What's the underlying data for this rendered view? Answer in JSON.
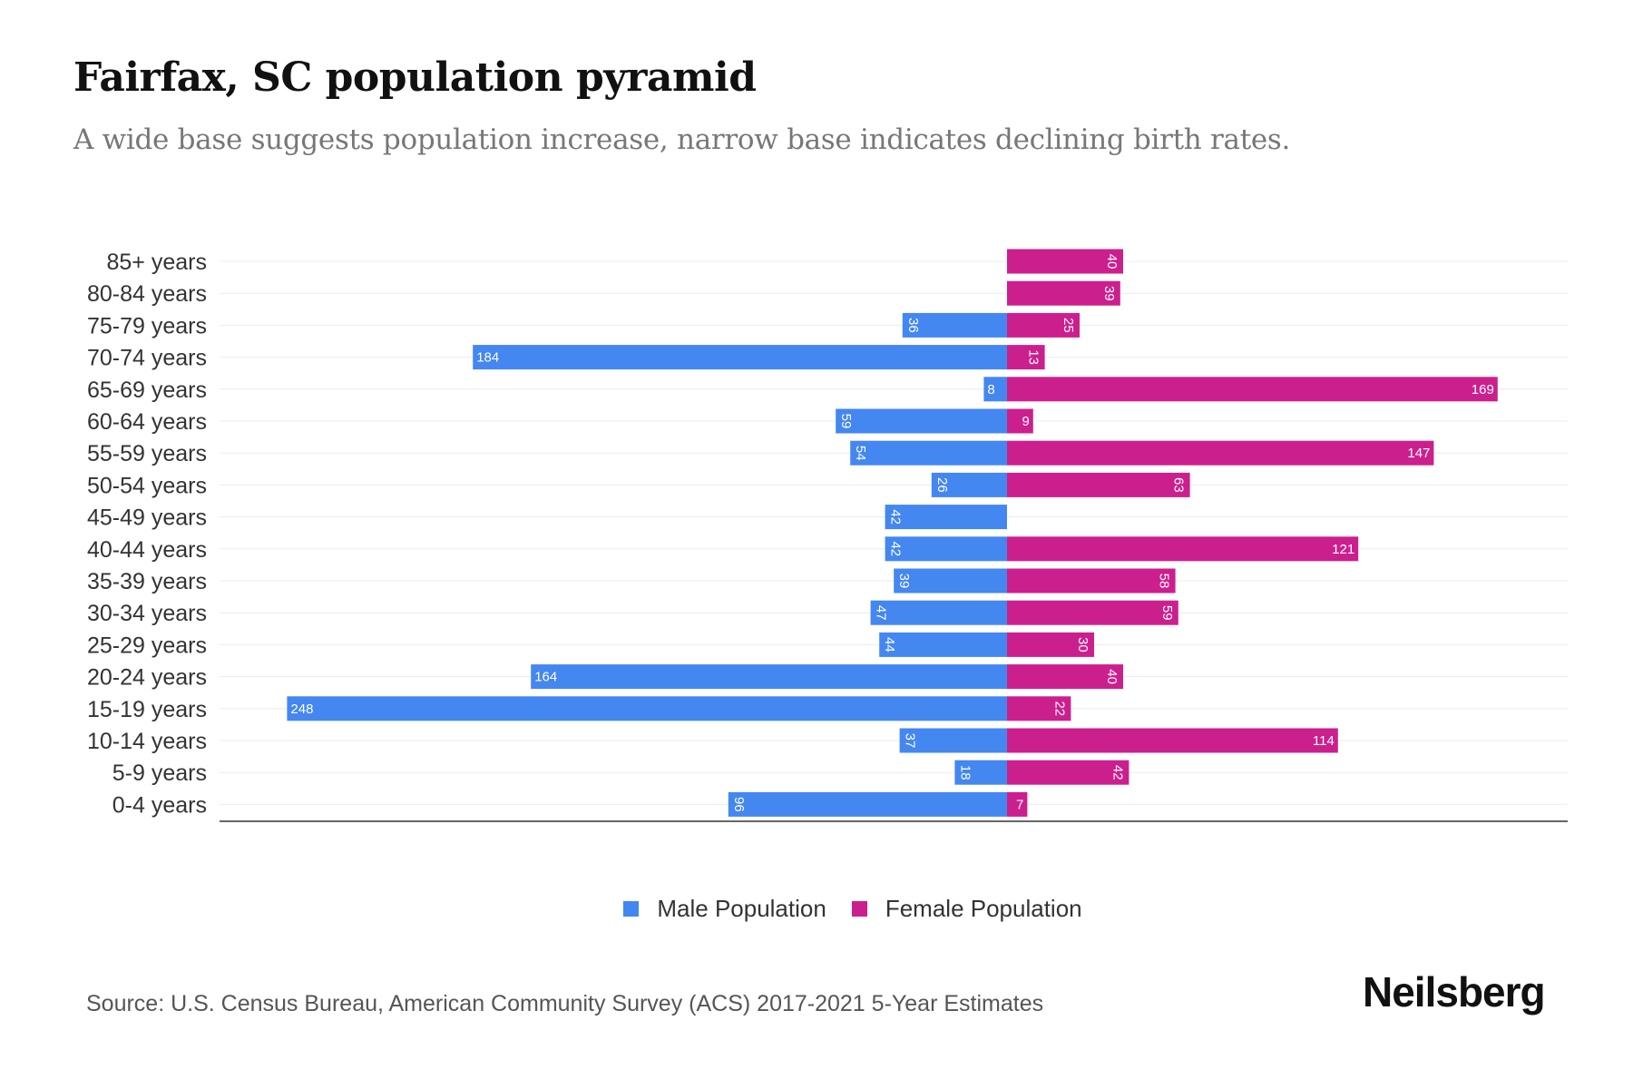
{
  "header": {
    "title": "Fairfax, SC population pyramid",
    "subtitle": "A wide base suggests population increase, narrow base indicates declining birth rates."
  },
  "chart_data": {
    "type": "bar",
    "orientation": "horizontal-pyramid",
    "categories": [
      "85+ years",
      "80-84 years",
      "75-79 years",
      "70-74 years",
      "65-69 years",
      "60-64 years",
      "55-59 years",
      "50-54 years",
      "45-49 years",
      "40-44 years",
      "35-39 years",
      "30-34 years",
      "25-29 years",
      "20-24 years",
      "15-19 years",
      "10-14 years",
      "5-9 years",
      "0-4 years"
    ],
    "series": [
      {
        "name": "Male Population",
        "color": "#4487f0",
        "values": [
          0,
          0,
          36,
          184,
          8,
          59,
          54,
          26,
          42,
          42,
          39,
          47,
          44,
          164,
          248,
          37,
          18,
          96
        ]
      },
      {
        "name": "Female Population",
        "color": "#cc1f8e",
        "values": [
          40,
          39,
          25,
          13,
          169,
          9,
          147,
          63,
          0,
          121,
          58,
          59,
          30,
          40,
          22,
          114,
          42,
          7
        ]
      }
    ],
    "grid": true,
    "legend_position": "bottom-center"
  },
  "legend": {
    "male": "Male Population",
    "female": "Female Population"
  },
  "footer": {
    "source": "Source: U.S. Census Bureau, American Community Survey (ACS) 2017-2021 5-Year Estimates",
    "logo": "Neilsberg"
  }
}
